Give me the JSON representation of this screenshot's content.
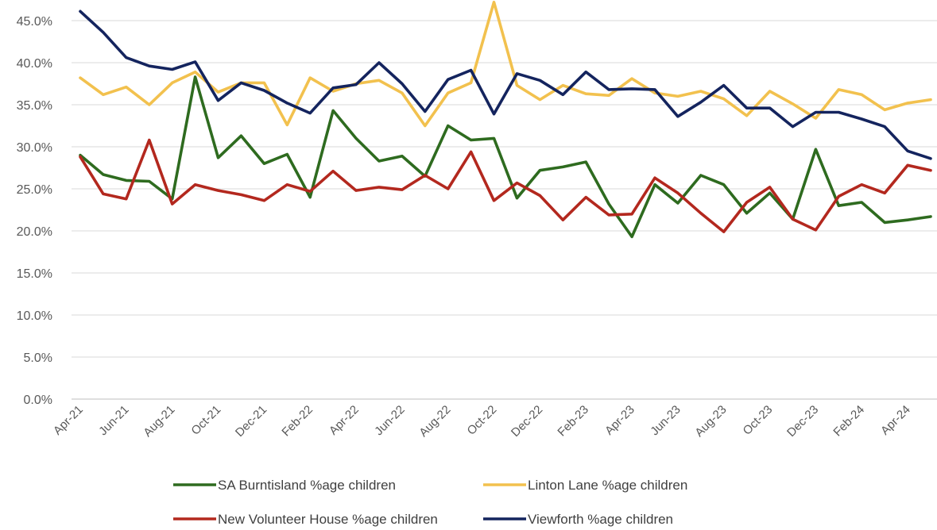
{
  "chart_data": {
    "type": "line",
    "title": "",
    "xlabel": "",
    "ylabel": "",
    "ylim": [
      0,
      45
    ],
    "y_ticks": [
      "0.0%",
      "5.0%",
      "10.0%",
      "15.0%",
      "20.0%",
      "25.0%",
      "30.0%",
      "35.0%",
      "40.0%",
      "45.0%"
    ],
    "x_tick_labels": [
      "Apr-21",
      "Jun-21",
      "Aug-21",
      "Oct-21",
      "Dec-21",
      "Feb-22",
      "Apr-22",
      "Jun-22",
      "Aug-22",
      "Oct-22",
      "Dec-22",
      "Feb-23",
      "Apr-23",
      "Jun-23",
      "Aug-23",
      "Oct-23",
      "Dec-23",
      "Feb-24",
      "Apr-24"
    ],
    "x": [
      "Apr-21",
      "May-21",
      "Jun-21",
      "Jul-21",
      "Aug-21",
      "Sep-21",
      "Oct-21",
      "Nov-21",
      "Dec-21",
      "Jan-22",
      "Feb-22",
      "Mar-22",
      "Apr-22",
      "May-22",
      "Jun-22",
      "Jul-22",
      "Aug-22",
      "Sep-22",
      "Oct-22",
      "Nov-22",
      "Dec-22",
      "Jan-23",
      "Feb-23",
      "Mar-23",
      "Apr-23",
      "May-23",
      "Jun-23",
      "Jul-23",
      "Aug-23",
      "Sep-23",
      "Oct-23",
      "Nov-23",
      "Dec-23",
      "Jan-24",
      "Feb-24",
      "Mar-24",
      "Apr-24",
      "May-24"
    ],
    "grid": "horizontal",
    "legend_position": "bottom",
    "series": [
      {
        "name": "SA Burntisland %age children",
        "color": "#2e6b1f",
        "values": [
          29.0,
          26.7,
          26.0,
          25.9,
          23.8,
          38.3,
          28.7,
          31.3,
          28.0,
          29.1,
          24.0,
          34.3,
          31.0,
          28.3,
          28.9,
          26.5,
          32.5,
          30.8,
          31.0,
          23.9,
          27.2,
          27.6,
          28.2,
          23.2,
          19.3,
          25.5,
          23.3,
          26.6,
          25.5,
          22.1,
          24.5,
          21.4,
          29.7,
          23.0,
          23.4,
          21.0,
          21.3,
          21.7
        ]
      },
      {
        "name": "Linton Lane %age children",
        "color": "#f2c14e",
        "values": [
          38.2,
          36.2,
          37.1,
          35.0,
          37.6,
          38.9,
          36.5,
          37.6,
          37.6,
          32.6,
          38.2,
          36.6,
          37.5,
          37.9,
          36.4,
          32.5,
          36.4,
          37.6,
          47.2,
          37.3,
          35.6,
          37.3,
          36.3,
          36.1,
          38.1,
          36.4,
          36.0,
          36.6,
          35.7,
          33.7,
          36.6,
          35.1,
          33.4,
          36.8,
          36.2,
          34.4,
          35.2,
          35.6
        ]
      },
      {
        "name": "New Volunteer House %age children",
        "color": "#b3281e",
        "values": [
          28.8,
          24.4,
          23.8,
          30.8,
          23.2,
          25.5,
          24.8,
          24.3,
          23.6,
          25.5,
          24.7,
          27.1,
          24.8,
          25.2,
          24.9,
          26.6,
          25.0,
          29.4,
          23.6,
          25.7,
          24.2,
          21.3,
          24.0,
          21.9,
          22.0,
          26.3,
          24.5,
          22.1,
          19.9,
          23.4,
          25.2,
          21.4,
          20.1,
          24.1,
          25.5,
          24.5,
          27.8,
          27.2
        ]
      },
      {
        "name": "Viewforth %age children",
        "color": "#14245e",
        "values": [
          46.1,
          43.6,
          40.6,
          39.6,
          39.2,
          40.1,
          35.5,
          37.6,
          36.7,
          35.2,
          34.0,
          37.0,
          37.4,
          40.0,
          37.5,
          34.2,
          38.0,
          39.1,
          33.9,
          38.7,
          37.9,
          36.2,
          38.9,
          36.8,
          36.9,
          36.8,
          33.6,
          35.3,
          37.3,
          34.6,
          34.6,
          32.4,
          34.1,
          34.1,
          33.3,
          32.4,
          29.5,
          28.6
        ]
      }
    ]
  }
}
